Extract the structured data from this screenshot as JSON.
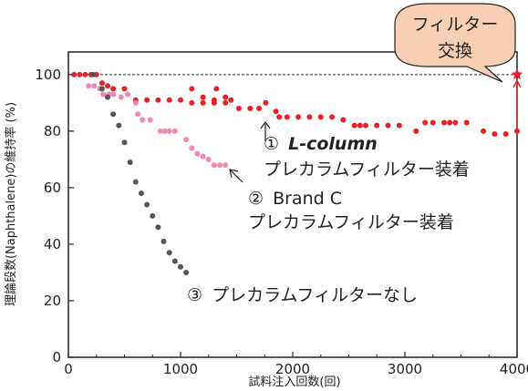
{
  "chart_data": {
    "type": "scatter",
    "xlabel": "試料注入回数(回)",
    "ylabel": "理論段数(Naphthalene)の維持率 (%)",
    "xlim": [
      0,
      4000
    ],
    "ylim": [
      0,
      108
    ],
    "xticks": [
      0,
      1000,
      2000,
      3000,
      4000
    ],
    "yticks": [
      0,
      20,
      40,
      60,
      80,
      100
    ],
    "reference_line": 100,
    "series": [
      {
        "name": "① L-column プレカラムフィルター装着",
        "color": "#e8202a",
        "points": [
          [
            50,
            100
          ],
          [
            100,
            100
          ],
          [
            150,
            100
          ],
          [
            200,
            100
          ],
          [
            250,
            100
          ],
          [
            300,
            97
          ],
          [
            350,
            96
          ],
          [
            400,
            95
          ],
          [
            500,
            95
          ],
          [
            600,
            91
          ],
          [
            700,
            91
          ],
          [
            800,
            91
          ],
          [
            900,
            91
          ],
          [
            1000,
            91
          ],
          [
            1100,
            90
          ],
          [
            1200,
            90
          ],
          [
            1300,
            90
          ],
          [
            1400,
            90
          ],
          [
            1100,
            95
          ],
          [
            1200,
            92
          ],
          [
            1300,
            91
          ],
          [
            1400,
            92
          ],
          [
            1320,
            95
          ],
          [
            1450,
            91
          ],
          [
            1520,
            88
          ],
          [
            1620,
            88
          ],
          [
            1700,
            88
          ],
          [
            1760,
            90
          ],
          [
            1850,
            87
          ],
          [
            1880,
            85
          ],
          [
            1950,
            85
          ],
          [
            2050,
            85
          ],
          [
            2150,
            85
          ],
          [
            2250,
            85
          ],
          [
            2350,
            85
          ],
          [
            2450,
            84
          ],
          [
            2550,
            82
          ],
          [
            2600,
            82
          ],
          [
            2650,
            82
          ],
          [
            2750,
            82
          ],
          [
            2850,
            82
          ],
          [
            2950,
            82
          ],
          [
            3100,
            80
          ],
          [
            3180,
            83
          ],
          [
            3250,
            83
          ],
          [
            3350,
            83
          ],
          [
            3400,
            83
          ],
          [
            3450,
            83
          ],
          [
            3550,
            83
          ],
          [
            3700,
            80
          ],
          [
            3800,
            79
          ],
          [
            3900,
            79
          ],
          [
            4000,
            80
          ]
        ]
      },
      {
        "name": "② Brand C プレカラムフィルター装着",
        "color": "#f088b8",
        "points": [
          [
            180,
            96
          ],
          [
            230,
            96
          ],
          [
            280,
            95
          ],
          [
            310,
            93
          ],
          [
            360,
            93
          ],
          [
            400,
            93
          ],
          [
            470,
            92
          ],
          [
            530,
            93
          ],
          [
            600,
            90
          ],
          [
            620,
            86
          ],
          [
            660,
            84
          ],
          [
            730,
            84
          ],
          [
            820,
            80
          ],
          [
            860,
            80
          ],
          [
            900,
            80
          ],
          [
            950,
            80
          ],
          [
            1050,
            77
          ],
          [
            1100,
            74
          ],
          [
            1150,
            72
          ],
          [
            1200,
            71
          ],
          [
            1250,
            70
          ],
          [
            1300,
            68
          ],
          [
            1350,
            68
          ],
          [
            1400,
            68
          ]
        ]
      },
      {
        "name": "③ プレカラムフィルターなし",
        "color": "#555555",
        "points": [
          [
            220,
            100
          ],
          [
            300,
            95
          ],
          [
            350,
            92
          ],
          [
            400,
            86
          ],
          [
            450,
            82
          ],
          [
            500,
            76
          ],
          [
            550,
            69
          ],
          [
            600,
            62
          ],
          [
            650,
            58
          ],
          [
            700,
            54
          ],
          [
            750,
            50
          ],
          [
            800,
            46
          ],
          [
            850,
            41
          ],
          [
            900,
            37
          ],
          [
            950,
            34
          ],
          [
            1000,
            32
          ],
          [
            1050,
            30
          ]
        ]
      }
    ],
    "annotations": [
      {
        "id": "lcolumn",
        "num": "①",
        "name": "L-column",
        "text": "プレカラムフィルター装着",
        "tx": 1750,
        "ty": 92
      },
      {
        "id": "brandc",
        "num": "②",
        "name": "Brand C",
        "text": "プレカラムフィルター装着",
        "tx": 1500,
        "ty": 62
      },
      {
        "id": "none",
        "num": "③",
        "text": "プレカラムフィルターなし"
      }
    ],
    "filter_change": {
      "x": 4000,
      "y": 100,
      "label_line1": "フィルター",
      "label_line2": "交換",
      "callout_color": "#f7cfb5",
      "arrow_color": "#e8202a"
    }
  }
}
